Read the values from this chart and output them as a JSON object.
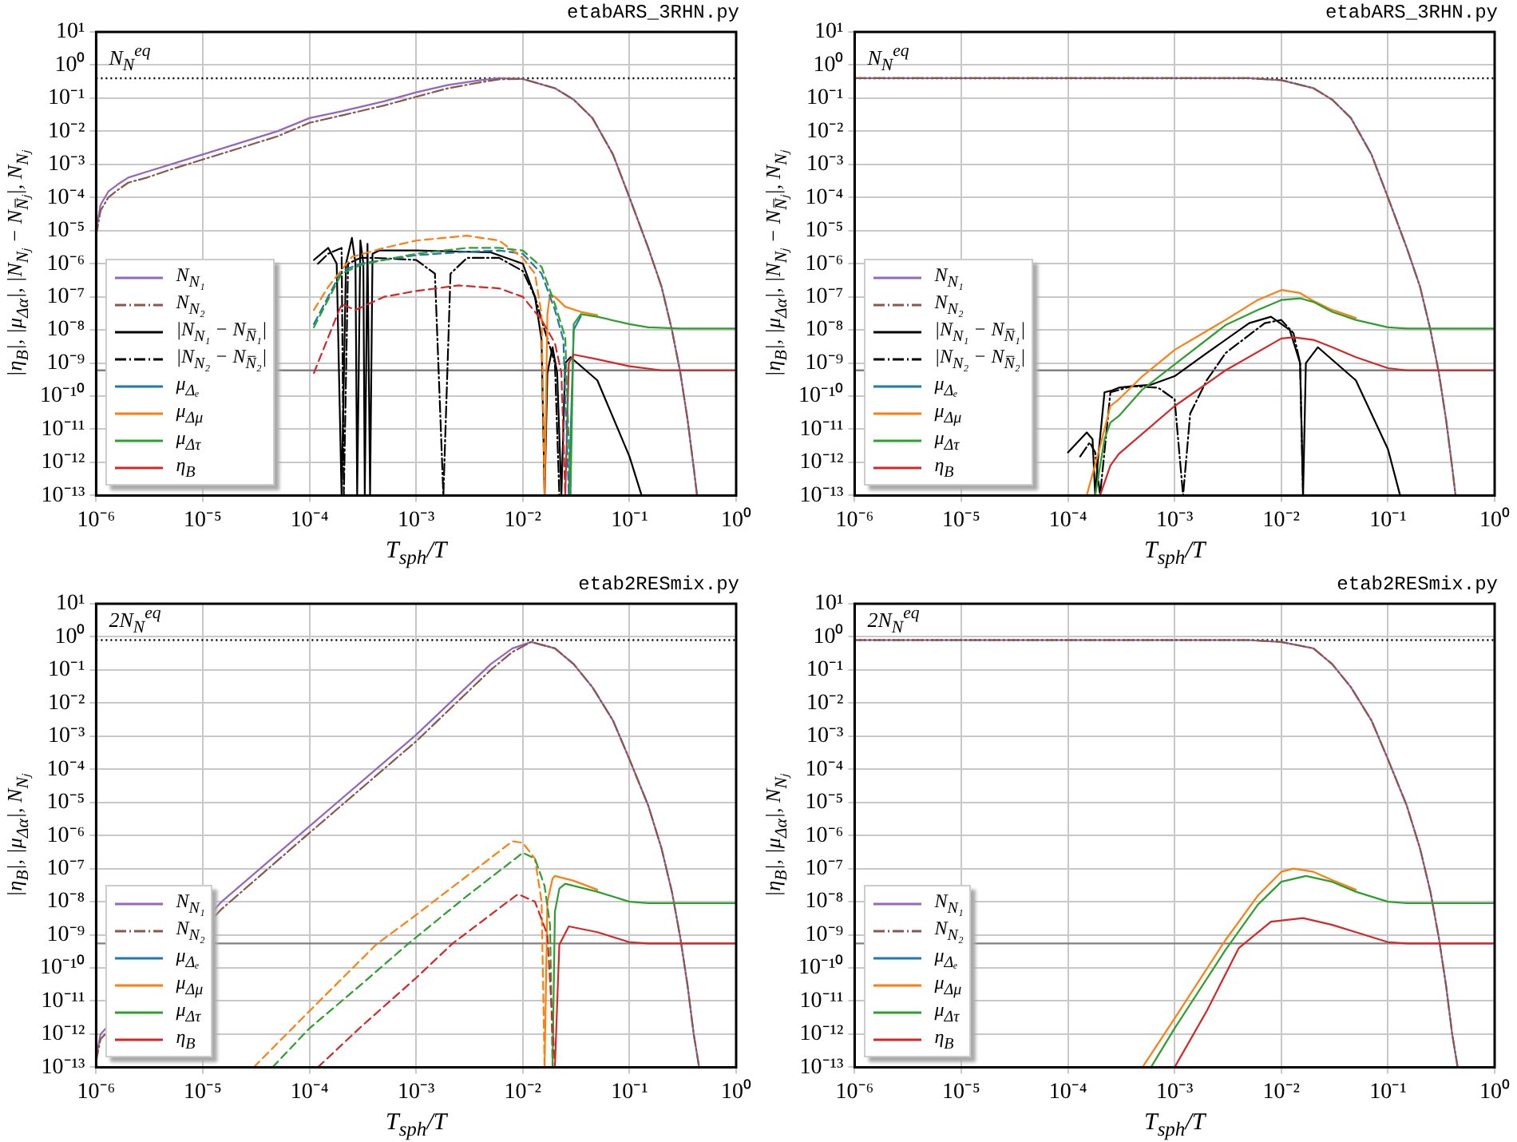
{
  "chart_data": [
    {
      "type": "line",
      "title": "etabARS_3RHN.py",
      "xlabel": "T$_{sph}$/T",
      "ylabel": "|η$_{B}$|, |μ$_{Δα}$|, |N$_{Nⱼ}$ − N$_{N̅ⱼ}$|, N$_{Nⱼ}$",
      "log": "xy",
      "grid": true,
      "legend": "bottom left",
      "xlim": [
        1e-06,
        1
      ],
      "ylim": [
        1e-13,
        10
      ],
      "xticks": [
        {
          "value": 1e-06,
          "label": "10⁻⁶"
        },
        {
          "value": 1e-05,
          "label": "10⁻⁵"
        },
        {
          "value": 0.0001,
          "label": "10⁻⁴"
        },
        {
          "value": 0.001,
          "label": "10⁻³"
        },
        {
          "value": 0.01,
          "label": "10⁻²"
        },
        {
          "value": 0.1,
          "label": "10⁻¹"
        },
        {
          "value": 1,
          "label": "10⁰"
        }
      ],
      "yticks": [
        {
          "value": 1e-13,
          "label": "10⁻¹³"
        },
        {
          "value": 1e-12,
          "label": "10⁻¹²"
        },
        {
          "value": 1e-11,
          "label": "10⁻¹¹"
        },
        {
          "value": 1e-10,
          "label": "10⁻¹⁰"
        },
        {
          "value": 1e-09,
          "label": "10⁻⁹"
        },
        {
          "value": 1e-08,
          "label": "10⁻⁸"
        },
        {
          "value": 1e-07,
          "label": "10⁻⁷"
        },
        {
          "value": 1e-06,
          "label": "10⁻⁶"
        },
        {
          "value": 1e-05,
          "label": "10⁻⁵"
        },
        {
          "value": 0.0001,
          "label": "10⁻⁴"
        },
        {
          "value": 0.001,
          "label": "10⁻³"
        },
        {
          "value": 0.01,
          "label": "10⁻²"
        },
        {
          "value": 0.1,
          "label": "10⁻¹"
        },
        {
          "value": 1,
          "label": "10⁰"
        },
        {
          "value": 10,
          "label": "10¹"
        }
      ],
      "ref_lines": [
        {
          "axis": "y",
          "value": 0.4,
          "label": "N$_{N}$$^{eq}$",
          "color": "#000000",
          "line_style": "dotted"
        },
        {
          "axis": "y",
          "value": 6e-10,
          "color": "#808080",
          "line_style": "solid"
        }
      ],
      "series": [
        {
          "name": "N$_{N₁}$",
          "color": "#9467bd",
          "line_style": "solid",
          "x": [
            1e-06,
            1.1e-06,
            1.3e-06,
            1.6e-06,
            2e-06,
            3e-06,
            5e-06,
            1e-05,
            2e-05,
            5e-05,
            0.0001,
            0.0002,
            0.0005,
            0.001,
            0.002,
            0.004,
            0.006,
            0.01,
            0.02,
            0.03,
            0.045,
            0.07,
            0.1,
            0.15,
            0.2,
            0.25,
            0.3,
            0.35,
            0.4,
            0.43
          ],
          "values": [
            1e-05,
            6e-05,
            0.00015,
            0.00025,
            0.0004,
            0.0006,
            0.001,
            0.002,
            0.004,
            0.01,
            0.025,
            0.04,
            0.08,
            0.15,
            0.25,
            0.35,
            0.4,
            0.38,
            0.2,
            0.09,
            0.025,
            0.002,
            0.0001,
            3e-06,
            2e-07,
            1e-08,
            5e-10,
            2e-11,
            7e-13,
            1e-13
          ]
        },
        {
          "name": "N$_{N₂}$",
          "color": "#8c564b",
          "line_style": "dashdot",
          "x": [
            1e-06,
            1.1e-06,
            1.3e-06,
            1.6e-06,
            2e-06,
            3e-06,
            5e-06,
            1e-05,
            2e-05,
            5e-05,
            0.0001,
            0.0002,
            0.0005,
            0.001,
            0.002,
            0.004,
            0.006,
            0.01,
            0.02,
            0.03,
            0.045,
            0.07,
            0.1,
            0.15,
            0.2,
            0.25,
            0.3,
            0.35,
            0.4,
            0.43
          ],
          "values": [
            7e-06,
            4e-05,
            0.0001,
            0.00017,
            0.00028,
            0.0004,
            0.0007,
            0.0014,
            0.0028,
            0.007,
            0.018,
            0.03,
            0.06,
            0.11,
            0.2,
            0.3,
            0.37,
            0.38,
            0.2,
            0.09,
            0.025,
            0.002,
            0.0001,
            3e-06,
            2e-07,
            1e-08,
            5e-10,
            2e-11,
            7e-13,
            1e-13
          ]
        },
        {
          "name": "|N$_{N₁}$ − N$_{N̅₁}$|",
          "color": "#000000",
          "line_style": "solid",
          "x": [
            0.00011,
            0.00015,
            0.00018,
            0.0002,
            0.00022,
            0.00025,
            0.00027,
            0.00028,
            0.0003,
            0.00032,
            0.00033,
            0.00035,
            0.00037,
            0.00039,
            0.00045,
            0.001,
            0.005,
            0.01,
            0.013,
            0.015,
            0.016,
            0.017,
            0.019,
            0.021,
            0.023,
            0.025,
            0.028,
            0.05,
            0.1,
            0.13
          ],
          "values": [
            1.3e-06,
            3e-06,
            1e-06,
            1e-13,
            1e-06,
            6e-06,
            1e-06,
            1e-13,
            5e-06,
            1e-06,
            1e-13,
            4e-06,
            1e-13,
            2e-06,
            2.5e-06,
            2.5e-06,
            2.2e-06,
            1e-06,
            1e-07,
            5e-09,
            1e-13,
            5e-10,
            3e-09,
            5e-10,
            1e-13,
            1e-09,
            1.5e-09,
            3e-10,
            1.5e-12,
            1e-13
          ]
        },
        {
          "name": "|N$_{N₂}$ − N$_{N̅₂}$|",
          "color": "#000000",
          "line_style": "dashdot",
          "x": [
            0.00012,
            0.00015,
            0.0002,
            0.00021,
            0.00023,
            0.0003,
            0.0004,
            0.001,
            0.0015,
            0.0018,
            0.0021,
            0.003,
            0.006,
            0.01,
            0.013,
            0.016,
            0.018,
            0.02,
            0.022
          ],
          "values": [
            1e-06,
            2e-06,
            3e-06,
            1e-13,
            1e-06,
            1.5e-06,
            1.5e-06,
            1.3e-06,
            5e-07,
            1e-13,
            5e-07,
            1.5e-06,
            1.5e-06,
            6e-07,
            1e-07,
            1e-08,
            3e-09,
            1e-09,
            1e-13
          ]
        },
        {
          "name": "μ$_{Δₑ}$",
          "color": "#1f77b4",
          "line_style": "solid",
          "x": [
            0.027,
            0.03,
            0.035
          ],
          "values": [
            1e-13,
            1e-08,
            2.6e-08
          ]
        },
        {
          "name": "μ$_{Δμ}$",
          "color": "#ff7f0e",
          "line_style": "solid",
          "x": [
            0.016,
            0.017,
            0.018,
            0.02,
            0.025,
            0.035,
            0.05
          ],
          "values": [
            1e-13,
            3e-08,
            1.2e-07,
            1e-07,
            5e-08,
            3.5e-08,
            2.8e-08
          ]
        },
        {
          "name": "μ$_{Δτ}$",
          "color": "#2ca02c",
          "line_style": "solid",
          "x": [
            0.028,
            0.03,
            0.035,
            0.05,
            0.1,
            0.15,
            0.3,
            1
          ],
          "values": [
            1e-13,
            1.5e-08,
            3e-08,
            2.5e-08,
            1.5e-08,
            1.2e-08,
            1.1e-08,
            1.1e-08
          ]
        },
        {
          "name": "η$_{B}$",
          "color": "#d62728",
          "line_style": "solid",
          "x": [
            0.025,
            0.027,
            0.03,
            0.05,
            0.1,
            0.2,
            0.3,
            1
          ],
          "values": [
            1e-13,
            1e-09,
            1.8e-09,
            1.3e-09,
            8e-10,
            6e-10,
            6e-10,
            6e-10
          ]
        },
        {
          "color": "#1f77b4",
          "line_style": "dashed",
          "x": [
            0.00011,
            0.0002,
            0.0003,
            0.0005,
            0.001,
            0.003,
            0.006,
            0.01,
            0.015,
            0.02,
            0.024,
            0.027
          ],
          "values": [
            1.5e-08,
            6e-07,
            1e-06,
            1.3e-06,
            1.8e-06,
            2.3e-06,
            2.5e-06,
            2e-06,
            5e-07,
            4e-08,
            5e-09,
            1e-13
          ]
        },
        {
          "color": "#ff7f0e",
          "line_style": "dashed",
          "x": [
            0.00011,
            0.00015,
            0.00025,
            0.0005,
            0.001,
            0.003,
            0.006,
            0.01,
            0.013,
            0.015,
            0.016
          ],
          "values": [
            4e-08,
            2e-07,
            1.6e-06,
            3e-06,
            5e-06,
            7e-06,
            5e-06,
            1.5e-06,
            5e-07,
            3e-08,
            1e-13
          ]
        },
        {
          "color": "#2ca02c",
          "line_style": "dashed",
          "x": [
            0.00011,
            0.0002,
            0.0003,
            0.0005,
            0.001,
            0.003,
            0.006,
            0.01,
            0.015,
            0.02,
            0.025,
            0.028
          ],
          "values": [
            1.2e-08,
            5e-07,
            9e-07,
            1.3e-06,
            2e-06,
            3e-06,
            3e-06,
            2.5e-06,
            8e-07,
            6e-08,
            6e-09,
            1e-13
          ]
        },
        {
          "color": "#d62728",
          "line_style": "dashed",
          "x": [
            0.00011,
            0.0002,
            0.00027,
            0.0005,
            0.001,
            0.0025,
            0.006,
            0.01,
            0.015,
            0.02,
            0.023,
            0.025
          ],
          "values": [
            5e-10,
            6e-08,
            4e-08,
            1e-07,
            1.5e-07,
            2.2e-07,
            1.8e-07,
            1e-07,
            2e-08,
            4e-09,
            5e-10,
            1e-13
          ]
        }
      ]
    },
    {
      "type": "line",
      "title": "etabARS_3RHN.py",
      "xlabel": "T$_{sph}$/T",
      "ylabel": "|η$_{B}$|, |μ$_{Δα}$|, |N$_{Nⱼ}$ − N$_{N̅ⱼ}$|, N$_{Nⱼ}$",
      "log": "xy",
      "grid": true,
      "legend": "bottom left",
      "xlim": [
        1e-06,
        1
      ],
      "ylim": [
        1e-13,
        10
      ],
      "xticks": [
        {
          "value": 1e-06,
          "label": "10⁻⁶"
        },
        {
          "value": 1e-05,
          "label": "10⁻⁵"
        },
        {
          "value": 0.0001,
          "label": "10⁻⁴"
        },
        {
          "value": 0.001,
          "label": "10⁻³"
        },
        {
          "value": 0.01,
          "label": "10⁻²"
        },
        {
          "value": 0.1,
          "label": "10⁻¹"
        },
        {
          "value": 1,
          "label": "10⁰"
        }
      ],
      "yticks": [
        {
          "value": 1e-13,
          "label": "10⁻¹³"
        },
        {
          "value": 1e-12,
          "label": "10⁻¹²"
        },
        {
          "value": 1e-11,
          "label": "10⁻¹¹"
        },
        {
          "value": 1e-10,
          "label": "10⁻¹⁰"
        },
        {
          "value": 1e-09,
          "label": "10⁻⁹"
        },
        {
          "value": 1e-08,
          "label": "10⁻⁸"
        },
        {
          "value": 1e-07,
          "label": "10⁻⁷"
        },
        {
          "value": 1e-06,
          "label": "10⁻⁶"
        },
        {
          "value": 1e-05,
          "label": "10⁻⁵"
        },
        {
          "value": 0.0001,
          "label": "10⁻⁴"
        },
        {
          "value": 0.001,
          "label": "10⁻³"
        },
        {
          "value": 0.01,
          "label": "10⁻²"
        },
        {
          "value": 0.1,
          "label": "10⁻¹"
        },
        {
          "value": 1,
          "label": "10⁰"
        },
        {
          "value": 10,
          "label": "10¹"
        }
      ],
      "ref_lines": [
        {
          "axis": "y",
          "value": 0.4,
          "label": "N$_{N}$$^{eq}$",
          "color": "#000000",
          "line_style": "dotted"
        },
        {
          "axis": "y",
          "value": 6e-10,
          "color": "#808080",
          "line_style": "solid"
        }
      ],
      "series": [
        {
          "name": "N$_{N₁}$",
          "color": "#9467bd",
          "line_style": "solid",
          "x": [
            1e-06,
            0.001,
            0.005,
            0.01,
            0.02,
            0.03,
            0.045,
            0.07,
            0.1,
            0.15,
            0.2,
            0.25,
            0.3,
            0.35,
            0.4,
            0.43
          ],
          "values": [
            0.4,
            0.4,
            0.4,
            0.35,
            0.2,
            0.09,
            0.025,
            0.002,
            0.0001,
            3e-06,
            2e-07,
            1e-08,
            5e-10,
            2e-11,
            7e-13,
            1e-13
          ]
        },
        {
          "name": "N$_{N₂}$",
          "color": "#8c564b",
          "line_style": "dashdot",
          "x": [
            1e-06,
            0.001,
            0.005,
            0.01,
            0.02,
            0.03,
            0.045,
            0.07,
            0.1,
            0.15,
            0.2,
            0.25,
            0.3,
            0.35,
            0.4,
            0.43
          ],
          "values": [
            0.4,
            0.4,
            0.4,
            0.35,
            0.2,
            0.09,
            0.025,
            0.002,
            0.0001,
            3e-06,
            2e-07,
            1e-08,
            5e-10,
            2e-11,
            7e-13,
            1e-13
          ]
        },
        {
          "name": "|N$_{N₁}$ − N$_{N̅₁}$|",
          "color": "#000000",
          "line_style": "solid",
          "x": [
            0.0001,
            0.00015,
            0.00017,
            0.00018,
            0.00019,
            0.00022,
            0.00026,
            0.0003,
            0.0004,
            0.0006,
            0.001,
            0.002,
            0.005,
            0.008,
            0.012,
            0.015,
            0.016,
            0.017,
            0.022,
            0.05,
            0.1,
            0.13
          ],
          "values": [
            2e-12,
            8e-12,
            5e-12,
            1e-13,
            1e-12,
            1.3e-10,
            1.5e-10,
            1.8e-10,
            2e-10,
            2.2e-10,
            4e-10,
            2e-09,
            1.6e-08,
            2.5e-08,
            1e-08,
            1e-09,
            1e-13,
            1e-09,
            3e-09,
            3e-10,
            2.5e-12,
            1e-13
          ]
        },
        {
          "name": "|N$_{N₂}$ − N$_{N̅₂}$|",
          "color": "#000000",
          "line_style": "dashdot",
          "x": [
            0.00013,
            0.00016,
            0.00018,
            0.0002,
            0.00025,
            0.0004,
            0.0007,
            0.001,
            0.0012,
            0.0014,
            0.002,
            0.003,
            0.007,
            0.01,
            0.013,
            0.015,
            0.016
          ],
          "values": [
            1.5e-12,
            4e-12,
            2e-12,
            1e-13,
            1.3e-10,
            2e-10,
            1.8e-10,
            8e-11,
            1e-13,
            3e-11,
            3e-10,
            2e-09,
            1.6e-08,
            2e-08,
            8e-09,
            1e-09,
            1e-13
          ]
        },
        {
          "name": "μ$_{Δₑ}$",
          "color": "#1f77b4",
          "line_style": "solid"
        },
        {
          "name": "μ$_{Δμ}$",
          "color": "#ff7f0e",
          "line_style": "solid",
          "x": [
            0.00015,
            0.0002,
            0.00025,
            0.0003,
            0.0005,
            0.001,
            0.003,
            0.006,
            0.01,
            0.015,
            0.02,
            0.03,
            0.05
          ],
          "values": [
            1e-13,
            3e-12,
            5e-11,
            8e-11,
            4e-10,
            2.5e-09,
            2e-08,
            8e-08,
            1.6e-07,
            1.3e-07,
            7.5e-08,
            4e-08,
            2.3e-08
          ]
        },
        {
          "name": "μ$_{Δτ}$",
          "color": "#2ca02c",
          "line_style": "solid",
          "x": [
            0.00018,
            0.00022,
            0.00025,
            0.0003,
            0.0005,
            0.001,
            0.003,
            0.006,
            0.01,
            0.015,
            0.02,
            0.03,
            0.05,
            0.1,
            0.15,
            0.3,
            1
          ],
          "values": [
            1e-13,
            5e-12,
            1.6e-11,
            2.5e-11,
            1.6e-10,
            9e-10,
            1.4e-08,
            4e-08,
            8e-08,
            9e-08,
            7e-08,
            3.5e-08,
            2e-08,
            1.2e-08,
            1.1e-08,
            1.1e-08,
            1.1e-08
          ]
        },
        {
          "name": "η$_{B}$",
          "color": "#d62728",
          "line_style": "solid",
          "x": [
            0.0002,
            0.00025,
            0.0003,
            0.001,
            0.003,
            0.01,
            0.013,
            0.02,
            0.03,
            0.05,
            0.1,
            0.15,
            0.3,
            1
          ],
          "values": [
            1e-13,
            8e-13,
            1.8e-12,
            5e-11,
            6e-10,
            5.5e-09,
            6e-09,
            5e-09,
            3e-09,
            1.5e-09,
            7e-10,
            6e-10,
            6e-10,
            6e-10
          ]
        }
      ]
    },
    {
      "type": "line",
      "title": "etab2RESmix.py",
      "xlabel": "T$_{sph}$/T",
      "ylabel": "|η$_{B}$|, |μ$_{Δα}$|, N$_{Nⱼ}$",
      "log": "xy",
      "grid": true,
      "legend": "bottom left",
      "xlim": [
        1e-06,
        1
      ],
      "ylim": [
        1e-13,
        10
      ],
      "xticks": [
        {
          "value": 1e-06,
          "label": "10⁻⁶"
        },
        {
          "value": 1e-05,
          "label": "10⁻⁵"
        },
        {
          "value": 0.0001,
          "label": "10⁻⁴"
        },
        {
          "value": 0.001,
          "label": "10⁻³"
        },
        {
          "value": 0.01,
          "label": "10⁻²"
        },
        {
          "value": 0.1,
          "label": "10⁻¹"
        },
        {
          "value": 1,
          "label": "10⁰"
        }
      ],
      "yticks": [
        {
          "value": 1e-13,
          "label": "10⁻¹³"
        },
        {
          "value": 1e-12,
          "label": "10⁻¹²"
        },
        {
          "value": 1e-11,
          "label": "10⁻¹¹"
        },
        {
          "value": 1e-10,
          "label": "10⁻¹⁰"
        },
        {
          "value": 1e-09,
          "label": "10⁻⁹"
        },
        {
          "value": 1e-08,
          "label": "10⁻⁸"
        },
        {
          "value": 1e-07,
          "label": "10⁻⁷"
        },
        {
          "value": 1e-06,
          "label": "10⁻⁶"
        },
        {
          "value": 1e-05,
          "label": "10⁻⁵"
        },
        {
          "value": 0.0001,
          "label": "10⁻⁴"
        },
        {
          "value": 0.001,
          "label": "10⁻³"
        },
        {
          "value": 0.01,
          "label": "10⁻²"
        },
        {
          "value": 0.1,
          "label": "10⁻¹"
        },
        {
          "value": 1,
          "label": "10⁰"
        },
        {
          "value": 10,
          "label": "10¹"
        }
      ],
      "ref_lines": [
        {
          "axis": "y",
          "value": 0.8,
          "label": "2N$_{N}$$^{eq}$",
          "color": "#000000",
          "line_style": "dotted"
        },
        {
          "axis": "y",
          "value": 5.5e-10,
          "color": "#808080",
          "line_style": "solid"
        }
      ],
      "series": [
        {
          "name": "N$_{N₁}$",
          "color": "#9467bd",
          "line_style": "solid",
          "x": [
            1e-06,
            1.1e-06,
            1.5e-05,
            0.0001,
            0.001,
            0.005,
            0.008,
            0.012,
            0.02,
            0.03,
            0.045,
            0.07,
            0.1,
            0.15,
            0.2,
            0.25,
            0.3,
            0.35,
            0.4,
            0.45
          ],
          "values": [
            2e-13,
            1e-12,
            1e-08,
            1.9e-06,
            0.0011,
            0.15,
            0.45,
            0.7,
            0.45,
            0.15,
            0.03,
            0.003,
            0.0002,
            8e-06,
            4e-07,
            2e-08,
            8e-10,
            3e-11,
            1e-12,
            1e-13
          ]
        },
        {
          "name": "N$_{N₂}$",
          "color": "#8c564b",
          "line_style": "dashdot",
          "x": [
            1e-06,
            1.1e-06,
            1.5e-05,
            0.0001,
            0.001,
            0.005,
            0.008,
            0.012,
            0.02,
            0.03,
            0.045,
            0.07,
            0.1,
            0.15,
            0.2,
            0.25,
            0.3,
            0.35,
            0.4,
            0.45
          ],
          "values": [
            1.5e-13,
            7e-13,
            6e-09,
            1.2e-06,
            0.0007,
            0.1,
            0.35,
            0.7,
            0.45,
            0.15,
            0.03,
            0.003,
            0.0002,
            8e-06,
            4e-07,
            2e-08,
            8e-10,
            3e-11,
            1e-12,
            1e-13
          ]
        },
        {
          "name": "μ$_{Δₑ}$",
          "color": "#1f77b4",
          "line_style": "solid"
        },
        {
          "name": "μ$_{Δμ}$",
          "color": "#ff7f0e",
          "line_style": "solid",
          "x": [
            0.016,
            0.017,
            0.019,
            0.02,
            0.03,
            0.05
          ],
          "values": [
            1e-13,
            1e-08,
            5e-08,
            6e-08,
            4.3e-08,
            2.3e-08
          ]
        },
        {
          "name": "μ$_{Δτ}$",
          "color": "#2ca02c",
          "line_style": "solid",
          "x": [
            0.019,
            0.02,
            0.022,
            0.025,
            0.05,
            0.1,
            0.15,
            0.3,
            1
          ],
          "values": [
            1e-13,
            5e-09,
            2.5e-08,
            3.5e-08,
            2e-08,
            1e-08,
            9e-09,
            9e-09,
            9e-09
          ]
        },
        {
          "name": "η$_{B}$",
          "color": "#d62728",
          "line_style": "solid",
          "x": [
            0.02,
            0.022,
            0.027,
            0.05,
            0.1,
            0.15,
            0.3,
            1
          ],
          "values": [
            1e-13,
            5e-10,
            1.8e-09,
            1.2e-09,
            6e-10,
            5.5e-10,
            5.5e-10,
            5.5e-10
          ]
        },
        {
          "color": "#ff7f0e",
          "line_style": "dashed",
          "x": [
            3e-05,
            0.0001,
            0.00042,
            0.001,
            0.003,
            0.008,
            0.01,
            0.013,
            0.015,
            0.016
          ],
          "values": [
            1e-13,
            5e-12,
            5e-10,
            4e-09,
            6e-08,
            6.7e-07,
            6e-07,
            2e-07,
            1e-08,
            1e-13
          ]
        },
        {
          "color": "#2ca02c",
          "line_style": "dashed",
          "x": [
            4.5e-05,
            0.0001,
            0.0003,
            0.00085,
            0.003,
            0.01,
            0.013,
            0.016,
            0.018,
            0.019
          ],
          "values": [
            1e-13,
            1.5e-12,
            3e-11,
            5.5e-10,
            1.5e-08,
            3e-07,
            2e-07,
            3e-08,
            2e-09,
            1e-13
          ]
        },
        {
          "color": "#d62728",
          "line_style": "dashed",
          "x": [
            0.00012,
            0.0003,
            0.001,
            0.0022,
            0.009,
            0.013,
            0.017,
            0.02
          ],
          "values": [
            1e-13,
            1.6e-12,
            5e-11,
            5.5e-10,
            1.7e-08,
            1e-08,
            1e-09,
            1e-13
          ]
        }
      ]
    },
    {
      "type": "line",
      "title": "etab2RESmix.py",
      "xlabel": "T$_{sph}$/T",
      "ylabel": "|η$_{B}$|, |μ$_{Δα}$|, N$_{Nⱼ}$",
      "log": "xy",
      "grid": true,
      "legend": "bottom left",
      "xlim": [
        1e-06,
        1
      ],
      "ylim": [
        1e-13,
        10
      ],
      "xticks": [
        {
          "value": 1e-06,
          "label": "10⁻⁶"
        },
        {
          "value": 1e-05,
          "label": "10⁻⁵"
        },
        {
          "value": 0.0001,
          "label": "10⁻⁴"
        },
        {
          "value": 0.001,
          "label": "10⁻³"
        },
        {
          "value": 0.01,
          "label": "10⁻²"
        },
        {
          "value": 0.1,
          "label": "10⁻¹"
        },
        {
          "value": 1,
          "label": "10⁰"
        }
      ],
      "yticks": [
        {
          "value": 1e-13,
          "label": "10⁻¹³"
        },
        {
          "value": 1e-12,
          "label": "10⁻¹²"
        },
        {
          "value": 1e-11,
          "label": "10⁻¹¹"
        },
        {
          "value": 1e-10,
          "label": "10⁻¹⁰"
        },
        {
          "value": 1e-09,
          "label": "10⁻⁹"
        },
        {
          "value": 1e-08,
          "label": "10⁻⁸"
        },
        {
          "value": 1e-07,
          "label": "10⁻⁷"
        },
        {
          "value": 1e-06,
          "label": "10⁻⁶"
        },
        {
          "value": 1e-05,
          "label": "10⁻⁵"
        },
        {
          "value": 0.0001,
          "label": "10⁻⁴"
        },
        {
          "value": 0.001,
          "label": "10⁻³"
        },
        {
          "value": 0.01,
          "label": "10⁻²"
        },
        {
          "value": 0.1,
          "label": "10⁻¹"
        },
        {
          "value": 1,
          "label": "10⁰"
        },
        {
          "value": 10,
          "label": "10¹"
        }
      ],
      "ref_lines": [
        {
          "axis": "y",
          "value": 0.8,
          "label": "2N$_{N}$$^{eq}$",
          "color": "#000000",
          "line_style": "dotted"
        },
        {
          "axis": "y",
          "value": 5.5e-10,
          "color": "#808080",
          "line_style": "solid"
        }
      ],
      "series": [
        {
          "name": "N$_{N₁}$",
          "color": "#9467bd",
          "line_style": "solid",
          "x": [
            1e-06,
            0.001,
            0.005,
            0.01,
            0.02,
            0.03,
            0.045,
            0.07,
            0.1,
            0.15,
            0.2,
            0.25,
            0.3,
            0.35,
            0.4,
            0.45
          ],
          "values": [
            0.8,
            0.8,
            0.8,
            0.7,
            0.45,
            0.15,
            0.03,
            0.003,
            0.0002,
            8e-06,
            4e-07,
            2e-08,
            8e-10,
            3e-11,
            1e-12,
            1e-13
          ]
        },
        {
          "name": "N$_{N₂}$",
          "color": "#8c564b",
          "line_style": "dashdot",
          "x": [
            1e-06,
            0.001,
            0.005,
            0.01,
            0.02,
            0.03,
            0.045,
            0.07,
            0.1,
            0.15,
            0.2,
            0.25,
            0.3,
            0.35,
            0.4,
            0.45
          ],
          "values": [
            0.8,
            0.8,
            0.8,
            0.7,
            0.45,
            0.15,
            0.03,
            0.003,
            0.0002,
            8e-06,
            4e-07,
            2e-08,
            8e-10,
            3e-11,
            1e-12,
            1e-13
          ]
        },
        {
          "name": "μ$_{Δₑ}$",
          "color": "#1f77b4",
          "line_style": "solid"
        },
        {
          "name": "μ$_{Δμ}$",
          "color": "#ff7f0e",
          "line_style": "solid",
          "x": [
            0.0005,
            0.001,
            0.003,
            0.006,
            0.01,
            0.013,
            0.02,
            0.03,
            0.05
          ],
          "values": [
            1e-13,
            3e-12,
            7e-10,
            1.5e-08,
            8e-08,
            1e-07,
            8e-08,
            4.5e-08,
            2.3e-08
          ]
        },
        {
          "name": "μ$_{Δτ}$",
          "color": "#2ca02c",
          "line_style": "solid",
          "x": [
            0.0006,
            0.001,
            0.003,
            0.006,
            0.01,
            0.017,
            0.03,
            0.05,
            0.1,
            0.15,
            1
          ],
          "values": [
            1e-13,
            1.5e-12,
            3.5e-10,
            8e-09,
            4e-08,
            6e-08,
            4e-08,
            2e-08,
            1e-08,
            9e-09,
            9e-09
          ]
        },
        {
          "name": "η$_{B}$",
          "color": "#d62728",
          "line_style": "solid",
          "x": [
            0.001,
            0.002,
            0.004,
            0.008,
            0.016,
            0.03,
            0.05,
            0.1,
            0.15,
            1
          ],
          "values": [
            1e-13,
            5e-12,
            4e-10,
            2.5e-09,
            3.2e-09,
            2e-09,
            1.2e-09,
            6e-10,
            5.5e-10,
            5.5e-10
          ]
        }
      ]
    }
  ]
}
